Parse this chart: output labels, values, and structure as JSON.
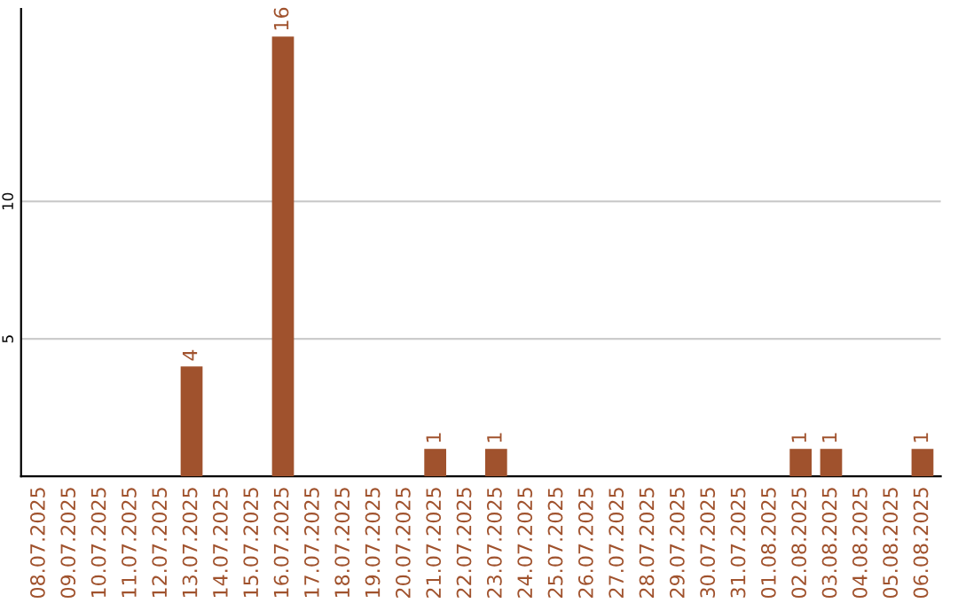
{
  "chart_data": {
    "type": "bar",
    "categories": [
      "08.07.2025",
      "09.07.2025",
      "10.07.2025",
      "11.07.2025",
      "12.07.2025",
      "13.07.2025",
      "14.07.2025",
      "15.07.2025",
      "16.07.2025",
      "17.07.2025",
      "18.07.2025",
      "19.07.2025",
      "20.07.2025",
      "21.07.2025",
      "22.07.2025",
      "23.07.2025",
      "24.07.2025",
      "25.07.2025",
      "26.07.2025",
      "27.07.2025",
      "28.07.2025",
      "29.07.2025",
      "30.07.2025",
      "31.07.2025",
      "01.08.2025",
      "02.08.2025",
      "03.08.2025",
      "04.08.2025",
      "05.08.2025",
      "06.08.2025"
    ],
    "values": [
      0,
      0,
      0,
      0,
      0,
      4,
      0,
      0,
      16,
      0,
      0,
      0,
      0,
      1,
      0,
      1,
      0,
      0,
      0,
      0,
      0,
      0,
      0,
      0,
      0,
      1,
      1,
      0,
      0,
      1
    ],
    "value_labels": [
      null,
      null,
      null,
      null,
      null,
      "4",
      null,
      null,
      "16",
      null,
      null,
      null,
      null,
      "1",
      null,
      "1",
      null,
      null,
      null,
      null,
      null,
      null,
      null,
      null,
      null,
      "1",
      "1",
      null,
      null,
      "1"
    ],
    "color": "#a0522d",
    "ylim": [
      0,
      17
    ],
    "yticks": [
      5,
      10
    ],
    "grid": "y"
  }
}
